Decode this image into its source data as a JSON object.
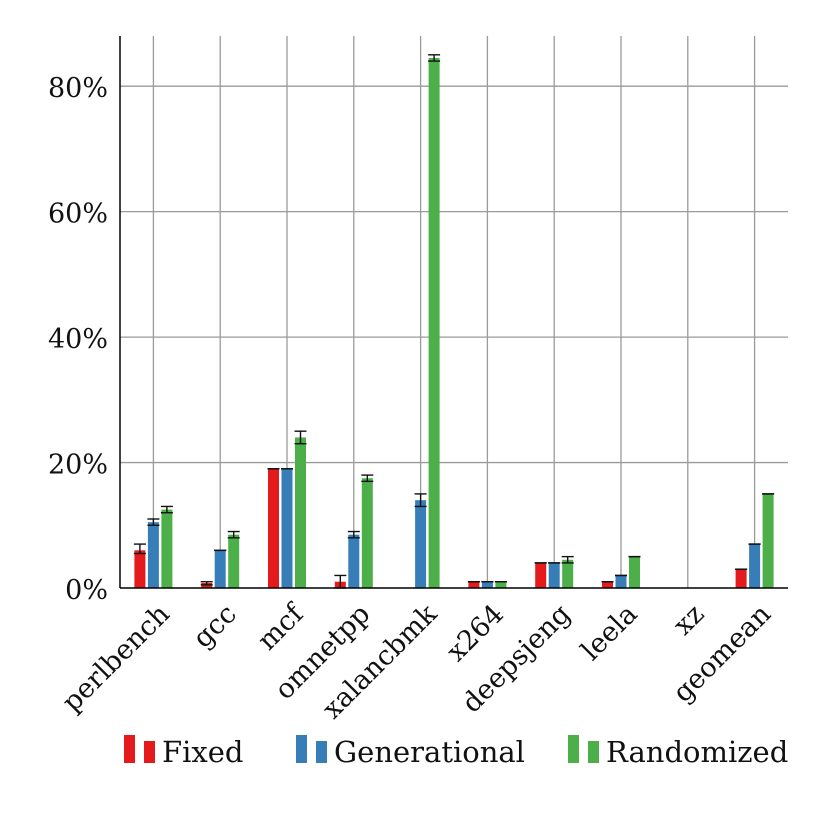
{
  "chart_data": {
    "type": "bar",
    "title": "",
    "xlabel": "",
    "ylabel": "",
    "categories": [
      "perlbench",
      "gcc",
      "mcf",
      "omnetpp",
      "xalancbmk",
      "x264",
      "deepsjeng",
      "leela",
      "xz",
      "geomean"
    ],
    "ylim": [
      0,
      88
    ],
    "yticks": [
      0,
      20,
      40,
      60,
      80
    ],
    "ytick_labels": [
      "0%",
      "20%",
      "40%",
      "60%",
      "80%"
    ],
    "grid": true,
    "legend_position": "bottom",
    "series": [
      {
        "name": "Fixed",
        "color": "#e41a1c",
        "values": [
          6.0,
          0.8,
          19.0,
          1.0,
          0.0,
          1.0,
          4.0,
          1.0,
          0.0,
          3.0
        ],
        "error": [
          [
            5.5,
            7.0
          ],
          [
            0.5,
            1.0
          ],
          [
            19.0,
            19.0
          ],
          [
            0.0,
            2.0
          ],
          null,
          [
            1.0,
            1.0
          ],
          [
            4.0,
            4.0
          ],
          [
            1.0,
            1.0
          ],
          null,
          [
            3.0,
            3.0
          ]
        ]
      },
      {
        "name": "Generational",
        "color": "#377eb8",
        "values": [
          10.5,
          6.0,
          19.0,
          8.5,
          14.0,
          1.0,
          4.0,
          2.0,
          0.0,
          7.0
        ],
        "error": [
          [
            10.0,
            11.0
          ],
          [
            6.0,
            6.0
          ],
          [
            19.0,
            19.0
          ],
          [
            8.0,
            9.0
          ],
          [
            13.0,
            15.0
          ],
          [
            1.0,
            1.0
          ],
          [
            4.0,
            4.0
          ],
          [
            2.0,
            2.0
          ],
          null,
          [
            7.0,
            7.0
          ]
        ]
      },
      {
        "name": "Randomized",
        "color": "#4daf4a",
        "values": [
          12.5,
          8.5,
          24.0,
          17.5,
          84.5,
          1.0,
          4.5,
          5.0,
          0.0,
          15.0
        ],
        "error": [
          [
            12.0,
            13.0
          ],
          [
            8.0,
            9.0
          ],
          [
            23.0,
            25.0
          ],
          [
            17.0,
            18.0
          ],
          [
            84.0,
            85.0
          ],
          [
            1.0,
            1.0
          ],
          [
            4.0,
            5.0
          ],
          [
            5.0,
            5.0
          ],
          null,
          [
            15.0,
            15.0
          ]
        ]
      }
    ]
  }
}
